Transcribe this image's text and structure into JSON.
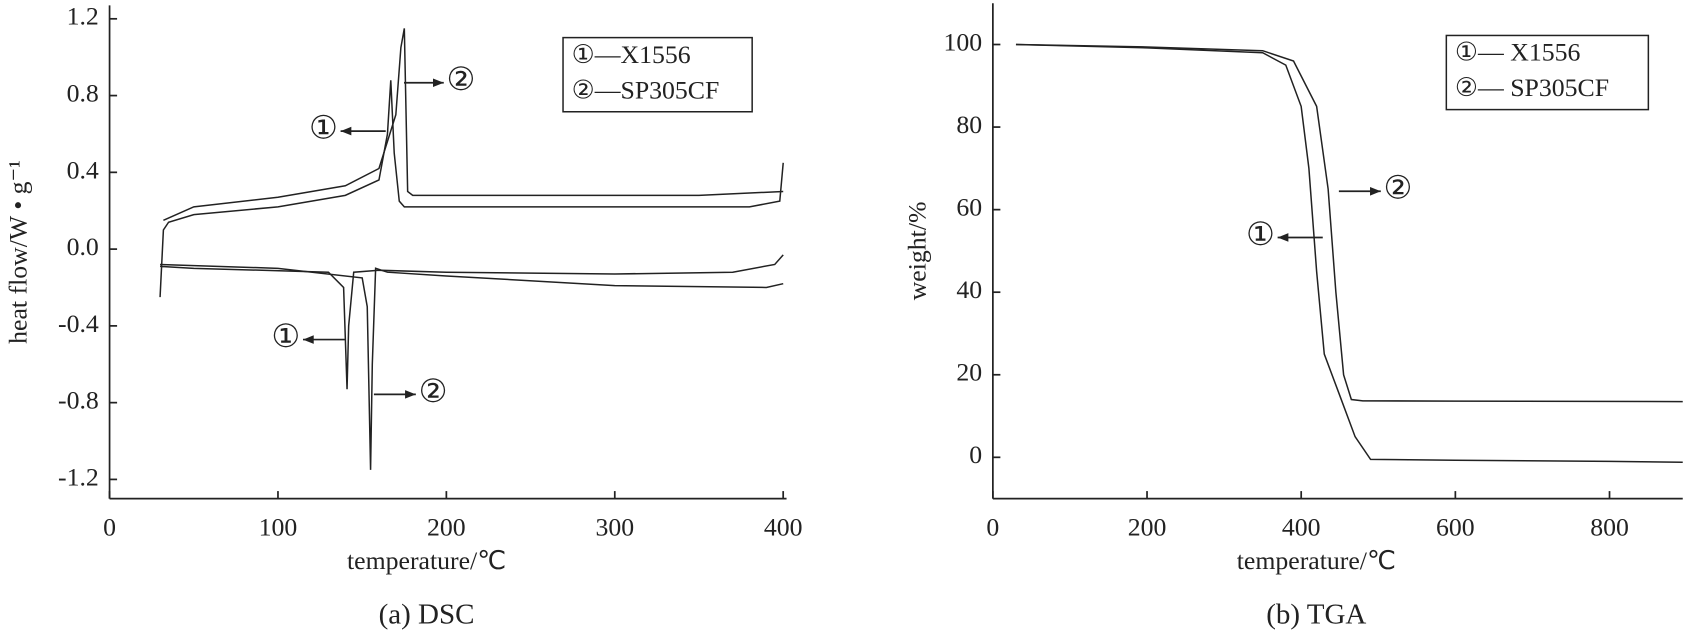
{
  "chart_data": [
    {
      "type": "line",
      "caption": "(a)  DSC",
      "x_label": "temperature/℃",
      "y_label": "heat flow/W • g⁻¹",
      "xlim": [
        0,
        402
      ],
      "ylim": [
        -1.3,
        1.27
      ],
      "xticks": [
        0,
        100,
        200,
        300,
        400
      ],
      "yticks": [
        1.2,
        0.8,
        0.4,
        {
          "value": 0,
          "label": "0.0"
        },
        -0.4,
        -0.8,
        -1.2
      ],
      "legend": "upper right",
      "series": [
        {
          "name": "①—X1556",
          "color": "#222222",
          "x": [
            30,
            32,
            35,
            50,
            100,
            140,
            160,
            165,
            167,
            169,
            172,
            175,
            200,
            300,
            380,
            398,
            400,
            null,
            400,
            395,
            370,
            300,
            200,
            160,
            145,
            142,
            141,
            139,
            130,
            50,
            30
          ],
          "values": [
            -0.25,
            0.1,
            0.14,
            0.18,
            0.22,
            0.28,
            0.36,
            0.6,
            0.88,
            0.5,
            0.25,
            0.22,
            0.22,
            0.22,
            0.22,
            0.25,
            0.45,
            null,
            -0.03,
            -0.08,
            -0.12,
            -0.13,
            -0.12,
            -0.11,
            -0.12,
            -0.4,
            -0.73,
            -0.2,
            -0.12,
            -0.1,
            -0.09
          ]
        },
        {
          "name": "②—SP305CF",
          "color": "#222222",
          "x": [
            32,
            50,
            100,
            140,
            160,
            170,
            173,
            175,
            177,
            180,
            250,
            350,
            400,
            null,
            400,
            390,
            300,
            200,
            165,
            158,
            156,
            155,
            153,
            150,
            100,
            30
          ],
          "values": [
            0.15,
            0.22,
            0.27,
            0.33,
            0.42,
            0.7,
            1.05,
            1.15,
            0.3,
            0.28,
            0.28,
            0.28,
            0.3,
            null,
            -0.18,
            -0.2,
            -0.19,
            -0.14,
            -0.12,
            -0.1,
            -0.6,
            -1.15,
            -0.3,
            -0.15,
            -0.1,
            -0.08
          ]
        }
      ],
      "annotations": [
        "①",
        "②",
        "①",
        "②"
      ]
    },
    {
      "type": "line",
      "caption": "(b)  TGA",
      "x_label": "temperature/℃",
      "y_label": "weight/%",
      "xlim": [
        0,
        895
      ],
      "ylim": [
        -10,
        110
      ],
      "xticks": [
        0,
        200,
        400,
        600,
        800
      ],
      "yticks": [
        100,
        80,
        60,
        40,
        20,
        0
      ],
      "legend": "upper right",
      "series": [
        {
          "name": "①— X1556",
          "color": "#222222",
          "x": [
            30,
            200,
            350,
            380,
            400,
            410,
            420,
            430,
            450,
            470,
            490,
            600,
            800,
            895
          ],
          "values": [
            100,
            99.2,
            98,
            95,
            85,
            70,
            45,
            25,
            15,
            5,
            -0.5,
            -0.7,
            -1,
            -1.2
          ]
        },
        {
          "name": "②— SP305CF",
          "color": "#222222",
          "x": [
            30,
            200,
            350,
            390,
            420,
            435,
            445,
            455,
            465,
            480,
            600,
            895
          ],
          "values": [
            100,
            99.4,
            98.5,
            96,
            85,
            65,
            40,
            20,
            14,
            13.7,
            13.6,
            13.5
          ]
        }
      ],
      "annotations": [
        "②",
        "①"
      ]
    }
  ]
}
